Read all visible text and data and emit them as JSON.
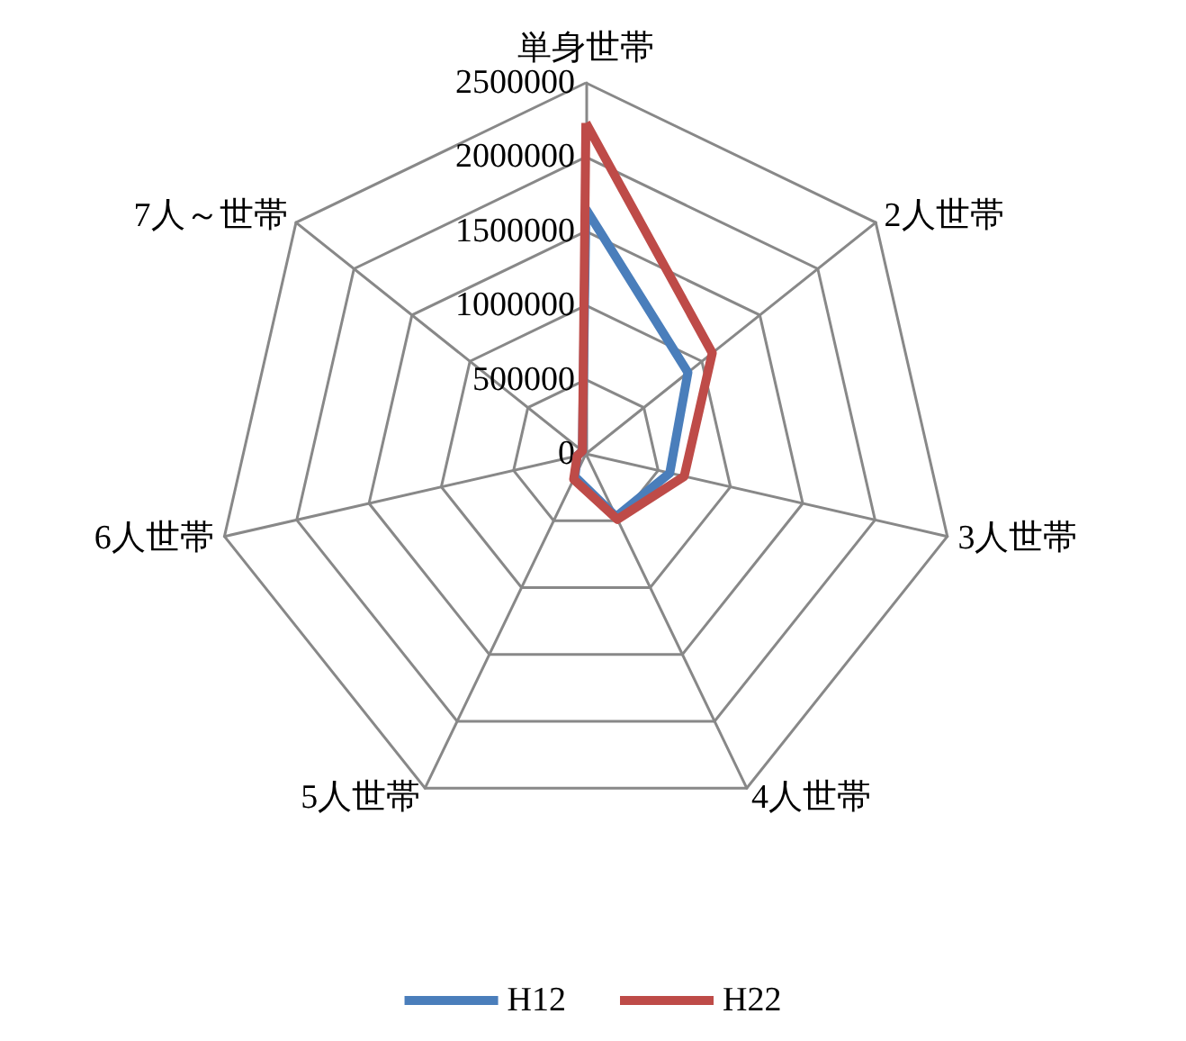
{
  "chart_data": {
    "type": "radar",
    "categories": [
      "単身世帯",
      "2人世帯",
      "3人世帯",
      "4人世帯",
      "5人世帯",
      "6人世帯",
      "7人～世帯"
    ],
    "series": [
      {
        "name": "H12",
        "color": "#4a7ebb",
        "values": [
          1650000,
          880000,
          580000,
          470000,
          170000,
          60000,
          30000
        ]
      },
      {
        "name": "H22",
        "color": "#be4b48",
        "values": [
          2230000,
          1090000,
          680000,
          490000,
          190000,
          60000,
          30000
        ]
      }
    ],
    "ylim": [
      0,
      2500000
    ],
    "yticks": [
      0,
      500000,
      1000000,
      1500000,
      2000000,
      2500000
    ],
    "legend": "bottom",
    "marker": "none"
  }
}
